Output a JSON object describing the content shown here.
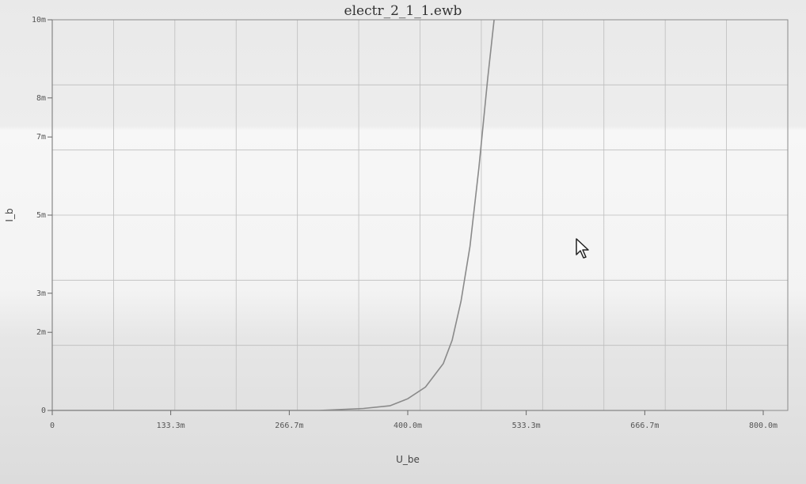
{
  "window": {
    "title": "electr_2_1_1.ewb"
  },
  "chart_data": {
    "type": "line",
    "title": "electr_2_1_1.ewb",
    "xlabel": "U_be",
    "ylabel": "I_b",
    "xlim": [
      0,
      0.8
    ],
    "ylim": [
      0,
      0.01
    ],
    "x_ticks": [
      {
        "value": 0,
        "label": "0"
      },
      {
        "value": 0.1333,
        "label": "133.3m"
      },
      {
        "value": 0.2667,
        "label": "266.7m"
      },
      {
        "value": 0.4,
        "label": "400.0m"
      },
      {
        "value": 0.5333,
        "label": "533.3m"
      },
      {
        "value": 0.6667,
        "label": "666.7m"
      },
      {
        "value": 0.8,
        "label": "800.0m"
      }
    ],
    "y_ticks": [
      {
        "value": 0,
        "label": "0"
      },
      {
        "value": 0.002,
        "label": "2m"
      },
      {
        "value": 0.003,
        "label": "3m"
      },
      {
        "value": 0.005,
        "label": "5m"
      },
      {
        "value": 0.007,
        "label": "7m"
      },
      {
        "value": 0.008,
        "label": "8m"
      },
      {
        "value": 0.01,
        "label": "10m"
      }
    ],
    "grid": true,
    "series": [
      {
        "color": "#8a8a8a",
        "x": [
          0.0,
          0.3,
          0.35,
          0.38,
          0.4,
          0.42,
          0.44,
          0.45,
          0.46,
          0.47,
          0.48,
          0.49,
          0.5
        ],
        "y": [
          0.0,
          0.0,
          5e-05,
          0.00012,
          0.0003,
          0.0006,
          0.0012,
          0.0018,
          0.0028,
          0.0042,
          0.0062,
          0.0085,
          0.0106
        ]
      }
    ]
  }
}
